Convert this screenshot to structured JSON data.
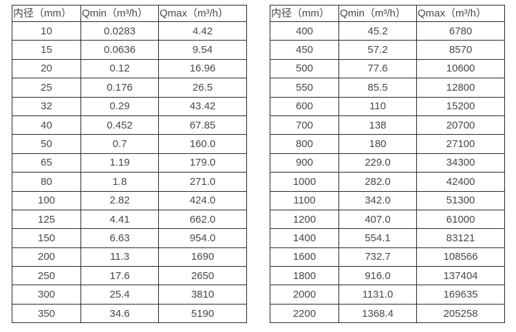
{
  "colors": {
    "background": "#ffffff",
    "border": "#262626",
    "text": "#474747"
  },
  "tables": [
    {
      "headers": [
        "内径（mm）",
        "Qmin（m³/h）",
        "Qmax（m³/h）"
      ],
      "rows": [
        [
          "10",
          "0.0283",
          "4.42"
        ],
        [
          "15",
          "0.0636",
          "9.54"
        ],
        [
          "20",
          "0.12",
          "16.96"
        ],
        [
          "25",
          "0.176",
          "26.5"
        ],
        [
          "32",
          "0.29",
          "43.42"
        ],
        [
          "40",
          "0.452",
          "67.85"
        ],
        [
          "50",
          "0.7",
          "160.0"
        ],
        [
          "65",
          "1.19",
          "179.0"
        ],
        [
          "80",
          "1.8",
          "271.0"
        ],
        [
          "100",
          "2.82",
          "424.0"
        ],
        [
          "125",
          "4.41",
          "662.0"
        ],
        [
          "150",
          "6.63",
          "954.0"
        ],
        [
          "200",
          "11.3",
          "1690"
        ],
        [
          "250",
          "17.6",
          "2650"
        ],
        [
          "300",
          "25.4",
          "3810"
        ],
        [
          "350",
          "34.6",
          "5190"
        ]
      ]
    },
    {
      "headers": [
        "内径（mm）",
        "Qmin（m³/h）",
        "Qmax（m³/h）"
      ],
      "rows": [
        [
          "400",
          "45.2",
          "6780"
        ],
        [
          "450",
          "57.2",
          "8570"
        ],
        [
          "500",
          "77.6",
          "10600"
        ],
        [
          "550",
          "85.5",
          "12800"
        ],
        [
          "600",
          "110",
          "15200"
        ],
        [
          "700",
          "138",
          "20700"
        ],
        [
          "800",
          "180",
          "27100"
        ],
        [
          "900",
          "229.0",
          "34300"
        ],
        [
          "1000",
          "282.0",
          "42400"
        ],
        [
          "1100",
          "342.0",
          "51300"
        ],
        [
          "1200",
          "407.0",
          "61000"
        ],
        [
          "1400",
          "554.1",
          "83121"
        ],
        [
          "1600",
          "732.7",
          "108566"
        ],
        [
          "1800",
          "916.0",
          "137404"
        ],
        [
          "2000",
          "1131.0",
          "169635"
        ],
        [
          "2200",
          "1368.4",
          "205258"
        ]
      ]
    }
  ]
}
